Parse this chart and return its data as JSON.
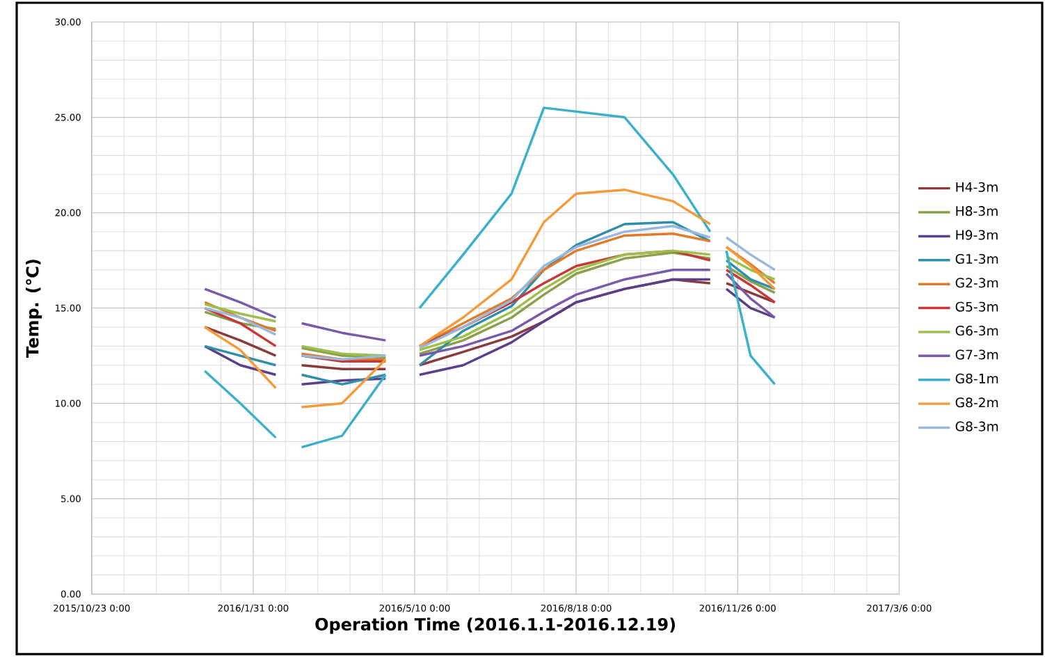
{
  "chart_data": {
    "type": "line",
    "xlabel": "Operation Time (2016.1.1-2016.12.19)",
    "ylabel": "Temp. (℃)",
    "x": [
      "2016-01-01",
      "2016-01-23",
      "2016-02-14",
      "2016-02-22",
      "2016-03-01",
      "2016-03-26",
      "2016-04-22",
      "2016-05-02",
      "2016-05-13",
      "2016-06-09",
      "2016-07-09",
      "2016-07-29",
      "2016-08-18",
      "2016-09-17",
      "2016-10-17",
      "2016-11-09",
      "2016-11-14",
      "2016-11-19",
      "2016-12-04",
      "2016-12-19"
    ],
    "series": [
      {
        "name": "H4-3m",
        "color": "#8b3a3a",
        "values": [
          14.0,
          13.3,
          12.5,
          null,
          12.0,
          11.8,
          11.8,
          null,
          12.0,
          12.7,
          13.5,
          14.3,
          15.3,
          16.0,
          16.5,
          16.3,
          null,
          16.3,
          15.8,
          15.3
        ]
      },
      {
        "name": "H8-3m",
        "color": "#8aa04a",
        "values": [
          14.8,
          14.2,
          13.9,
          null,
          12.9,
          12.5,
          12.4,
          null,
          12.6,
          13.3,
          14.5,
          15.7,
          16.8,
          17.6,
          17.9,
          17.6,
          null,
          17.2,
          16.4,
          15.8
        ]
      },
      {
        "name": "H9-3m",
        "color": "#5b3f8a",
        "values": [
          13.0,
          12.0,
          11.5,
          null,
          11.0,
          11.2,
          11.3,
          null,
          11.5,
          12.0,
          13.2,
          14.3,
          15.3,
          16.0,
          16.5,
          16.5,
          null,
          16.0,
          15.0,
          14.5
        ]
      },
      {
        "name": "G1-3m",
        "color": "#2e8fa8",
        "values": [
          13.0,
          12.5,
          12.0,
          null,
          11.5,
          11.0,
          11.5,
          null,
          12.0,
          13.8,
          15.1,
          17.0,
          18.3,
          19.4,
          19.5,
          18.5,
          null,
          17.5,
          16.5,
          16.0
        ]
      },
      {
        "name": "G2-3m",
        "color": "#e07b2a",
        "values": [
          15.3,
          14.5,
          13.8,
          null,
          12.6,
          12.3,
          12.3,
          null,
          13.0,
          14.2,
          15.5,
          17.0,
          18.0,
          18.8,
          18.9,
          18.5,
          null,
          18.2,
          17.3,
          16.3
        ]
      },
      {
        "name": "G5-3m",
        "color": "#c8373a",
        "values": [
          15.0,
          14.2,
          13.0,
          null,
          12.5,
          12.2,
          12.2,
          null,
          13.0,
          14.0,
          15.3,
          16.3,
          17.2,
          17.8,
          18.0,
          17.5,
          null,
          17.0,
          16.2,
          15.3
        ]
      },
      {
        "name": "G6-3m",
        "color": "#9cc04a",
        "values": [
          15.2,
          14.7,
          14.3,
          null,
          13.0,
          12.6,
          12.5,
          null,
          12.8,
          13.5,
          14.8,
          16.0,
          17.0,
          17.8,
          18.0,
          17.8,
          null,
          17.7,
          17.0,
          16.5
        ]
      },
      {
        "name": "G7-3m",
        "color": "#7a5aa8",
        "values": [
          16.0,
          15.3,
          14.5,
          null,
          14.2,
          13.7,
          13.3,
          null,
          12.5,
          13.0,
          13.8,
          14.8,
          15.7,
          16.5,
          17.0,
          17.0,
          null,
          16.8,
          15.5,
          14.5
        ]
      },
      {
        "name": "G8-1m",
        "color": "#3bb0c8",
        "values": [
          11.7,
          10.0,
          8.2,
          null,
          7.7,
          8.3,
          11.5,
          null,
          15.0,
          17.8,
          21.0,
          25.5,
          25.3,
          25.0,
          22.0,
          19.0,
          null,
          18.0,
          12.5,
          11.0
        ]
      },
      {
        "name": "G8-2m",
        "color": "#f39a3a",
        "values": [
          14.0,
          12.8,
          10.8,
          null,
          9.8,
          10.0,
          12.3,
          null,
          13.0,
          14.5,
          16.5,
          19.5,
          21.0,
          21.2,
          20.6,
          19.4,
          null,
          18.2,
          17.2,
          16.0
        ]
      },
      {
        "name": "G8-3m",
        "color": "#9ab8dc",
        "values": [
          15.0,
          14.5,
          13.6,
          null,
          12.5,
          12.3,
          12.5,
          null,
          12.9,
          14.0,
          15.4,
          17.2,
          18.2,
          19.0,
          19.3,
          18.7,
          null,
          18.7,
          17.8,
          17.0
        ]
      }
    ],
    "xlim": [
      "2015-10-23",
      "2017-03-06"
    ],
    "xticks": [
      {
        "value": "2015-10-23",
        "label": "2015/10/23 0:00"
      },
      {
        "value": "2016-01-31",
        "label": "2016/1/31 0:00"
      },
      {
        "value": "2016-05-10",
        "label": "2016/5/10 0:00"
      },
      {
        "value": "2016-08-18",
        "label": "2016/8/18 0:00"
      },
      {
        "value": "2016-11-26",
        "label": "2016/11/26 0:00"
      },
      {
        "value": "2017-03-06",
        "label": "2017/3/6 0:00"
      }
    ],
    "ylim": [
      0,
      30
    ],
    "yticks": [
      {
        "value": 0,
        "label": "0.00"
      },
      {
        "value": 5,
        "label": "5.00"
      },
      {
        "value": 10,
        "label": "10.00"
      },
      {
        "value": 15,
        "label": "15.00"
      },
      {
        "value": 20,
        "label": "20.00"
      },
      {
        "value": 25,
        "label": "25.00"
      },
      {
        "value": 30,
        "label": "30.00"
      }
    ],
    "grid": true,
    "legend": "right",
    "marker": "none",
    "line_style": "solid"
  }
}
